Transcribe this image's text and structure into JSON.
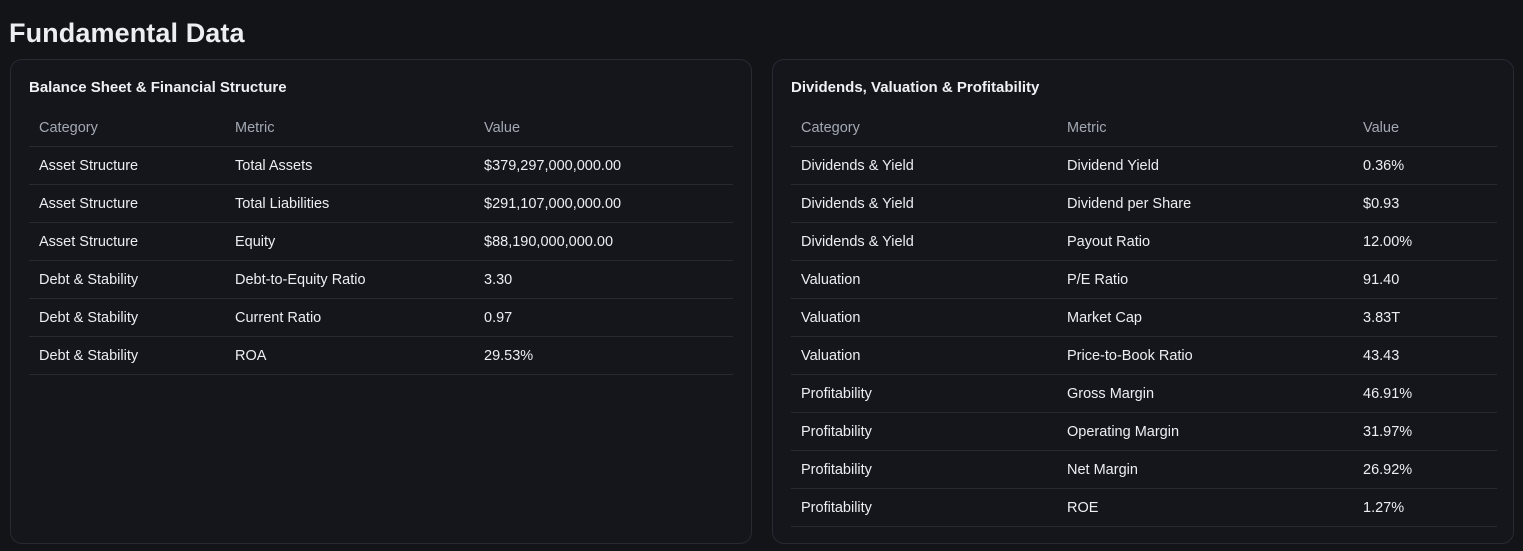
{
  "page": {
    "title": "Fundamental Data"
  },
  "balance_sheet": {
    "title": "Balance Sheet & Financial Structure",
    "columns": [
      "Category",
      "Metric",
      "Value"
    ],
    "rows": [
      [
        "Asset Structure",
        "Total Assets",
        "$379,297,000,000.00"
      ],
      [
        "Asset Structure",
        "Total Liabilities",
        "$291,107,000,000.00"
      ],
      [
        "Asset Structure",
        "Equity",
        "$88,190,000,000.00"
      ],
      [
        "Debt & Stability",
        "Debt-to-Equity Ratio",
        "3.30"
      ],
      [
        "Debt & Stability",
        "Current Ratio",
        "0.97"
      ],
      [
        "Debt & Stability",
        "ROA",
        "29.53%"
      ]
    ]
  },
  "valuation": {
    "title": "Dividends, Valuation & Profitability",
    "columns": [
      "Category",
      "Metric",
      "Value"
    ],
    "rows": [
      [
        "Dividends & Yield",
        "Dividend Yield",
        "0.36%"
      ],
      [
        "Dividends & Yield",
        "Dividend per Share",
        "$0.93"
      ],
      [
        "Dividends & Yield",
        "Payout Ratio",
        "12.00%"
      ],
      [
        "Valuation",
        "P/E Ratio",
        "91.40"
      ],
      [
        "Valuation",
        "Market Cap",
        "3.83T"
      ],
      [
        "Valuation",
        "Price-to-Book Ratio",
        "43.43"
      ],
      [
        "Profitability",
        "Gross Margin",
        "46.91%"
      ],
      [
        "Profitability",
        "Operating Margin",
        "31.97%"
      ],
      [
        "Profitability",
        "Net Margin",
        "26.92%"
      ],
      [
        "Profitability",
        "ROE",
        "1.27%"
      ]
    ]
  }
}
